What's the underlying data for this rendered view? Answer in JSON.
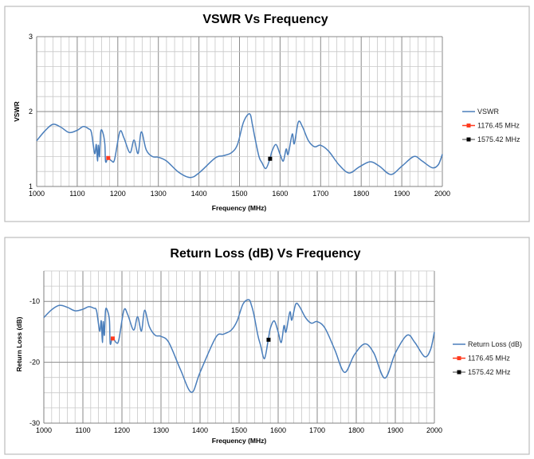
{
  "chart_data": [
    {
      "type": "line",
      "title": "VSWR Vs Frequency",
      "xlabel": "Frequency (MHz)",
      "ylabel": "VSWR",
      "xlim": [
        1000,
        2000
      ],
      "ylim": [
        1,
        3
      ],
      "xticks": [
        1000,
        1100,
        1200,
        1300,
        1400,
        1500,
        1600,
        1700,
        1800,
        1900,
        2000
      ],
      "yticks": [
        1,
        2,
        3
      ],
      "grid": true,
      "legend": "right",
      "line_color": "#4a7ebb",
      "series": [
        {
          "name": "VSWR",
          "color": "#4a7ebb",
          "x": [
            1000,
            1020,
            1040,
            1060,
            1080,
            1100,
            1115,
            1128,
            1135,
            1143,
            1147,
            1150,
            1152,
            1155,
            1158,
            1163,
            1168,
            1170,
            1176,
            1185,
            1192,
            1205,
            1215,
            1230,
            1240,
            1250,
            1258,
            1270,
            1285,
            1300,
            1320,
            1350,
            1378,
            1400,
            1440,
            1460,
            1480,
            1495,
            1510,
            1525,
            1532,
            1538,
            1548,
            1555,
            1565,
            1575,
            1580,
            1590,
            1600,
            1608,
            1615,
            1620,
            1630,
            1635,
            1645,
            1655,
            1670,
            1685,
            1700,
            1720,
            1745,
            1770,
            1795,
            1822,
            1845,
            1873,
            1900,
            1930,
            1950,
            1975,
            1990,
            2000
          ],
          "y": [
            1.61,
            1.74,
            1.83,
            1.79,
            1.72,
            1.75,
            1.8,
            1.77,
            1.72,
            1.44,
            1.56,
            1.34,
            1.55,
            1.4,
            1.73,
            1.72,
            1.57,
            1.33,
            1.38,
            1.34,
            1.36,
            1.73,
            1.65,
            1.45,
            1.62,
            1.44,
            1.73,
            1.49,
            1.4,
            1.39,
            1.34,
            1.19,
            1.12,
            1.18,
            1.38,
            1.41,
            1.45,
            1.56,
            1.86,
            1.97,
            1.82,
            1.65,
            1.4,
            1.32,
            1.24,
            1.37,
            1.47,
            1.56,
            1.43,
            1.34,
            1.5,
            1.43,
            1.7,
            1.57,
            1.86,
            1.8,
            1.61,
            1.53,
            1.55,
            1.47,
            1.29,
            1.18,
            1.26,
            1.33,
            1.27,
            1.16,
            1.27,
            1.4,
            1.34,
            1.25,
            1.29,
            1.43
          ]
        },
        {
          "name": "1176.45 MHz",
          "color": "#ff3b1f",
          "marker": "square",
          "x": [
            1176.45
          ],
          "y": [
            1.38
          ]
        },
        {
          "name": "1575.42 MHz",
          "color": "#000000",
          "marker": "square",
          "x": [
            1575.42
          ],
          "y": [
            1.37
          ]
        }
      ]
    },
    {
      "type": "line",
      "title": "Return Loss (dB) Vs Frequency",
      "xlabel": "Frequency (MHz)",
      "ylabel": "Return Loss (dB)",
      "xlim": [
        1000,
        2000
      ],
      "ylim": [
        -30,
        -5
      ],
      "xticks": [
        1000,
        1100,
        1200,
        1300,
        1400,
        1500,
        1600,
        1700,
        1800,
        1900,
        2000
      ],
      "yticks": [
        -30,
        -20,
        -10
      ],
      "grid": true,
      "legend": "right",
      "series": [
        {
          "name": "Return Loss (dB)",
          "color": "#4a7ebb",
          "x": [
            1000,
            1020,
            1040,
            1060,
            1080,
            1100,
            1115,
            1128,
            1135,
            1143,
            1147,
            1150,
            1152,
            1155,
            1158,
            1163,
            1168,
            1170,
            1176,
            1185,
            1192,
            1205,
            1215,
            1230,
            1240,
            1250,
            1258,
            1270,
            1285,
            1300,
            1320,
            1350,
            1378,
            1400,
            1440,
            1460,
            1480,
            1495,
            1510,
            1525,
            1532,
            1538,
            1548,
            1555,
            1565,
            1575,
            1580,
            1590,
            1600,
            1608,
            1615,
            1620,
            1630,
            1635,
            1645,
            1655,
            1670,
            1685,
            1700,
            1720,
            1745,
            1770,
            1795,
            1822,
            1845,
            1873,
            1900,
            1930,
            1950,
            1975,
            1990,
            2000
          ],
          "y": [
            -12.66,
            -11.37,
            -10.65,
            -10.96,
            -11.55,
            -11.29,
            -10.88,
            -11.12,
            -11.55,
            -14.88,
            -13.2,
            -16.75,
            -13.32,
            -15.56,
            -11.46,
            -11.55,
            -13.08,
            -16.98,
            -15.94,
            -16.75,
            -16.33,
            -11.46,
            -12.21,
            -14.72,
            -12.52,
            -14.88,
            -11.46,
            -14.12,
            -15.56,
            -15.75,
            -16.75,
            -21.23,
            -24.94,
            -21.66,
            -15.94,
            -15.39,
            -14.72,
            -13.2,
            -10.44,
            -9.72,
            -10.73,
            -12.21,
            -15.56,
            -17.21,
            -19.4,
            -16.13,
            -14.41,
            -13.2,
            -15.04,
            -16.75,
            -13.98,
            -15.04,
            -11.73,
            -13.08,
            -10.44,
            -10.88,
            -12.66,
            -13.58,
            -13.32,
            -14.41,
            -17.95,
            -21.66,
            -18.78,
            -16.98,
            -18.49,
            -22.61,
            -18.49,
            -15.56,
            -16.75,
            -19.08,
            -17.95,
            -15.04
          ]
        },
        {
          "name": "1176.45 MHz",
          "color": "#ff3b1f",
          "marker": "square",
          "x": [
            1176.45
          ],
          "y": [
            -16.1
          ]
        },
        {
          "name": "1575.42 MHz",
          "color": "#000000",
          "marker": "square",
          "x": [
            1575.42
          ],
          "y": [
            -16.3
          ]
        }
      ]
    }
  ]
}
